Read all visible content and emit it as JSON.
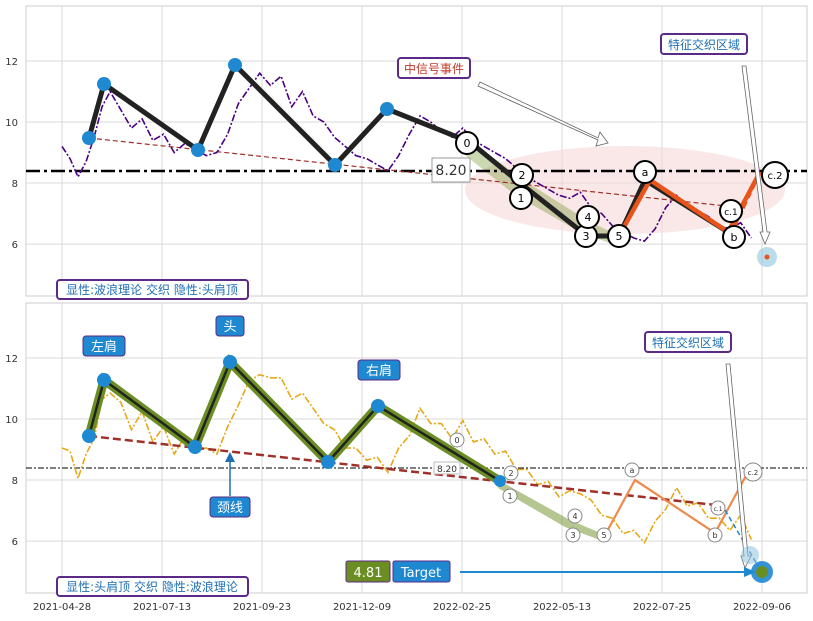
{
  "chart_data": [
    {
      "type": "line",
      "panel": "top",
      "ylim": [
        4.3,
        13.8
      ],
      "y_ticks": [
        6,
        8,
        10,
        12
      ],
      "grid": true,
      "price_series": [
        [
          0,
          9.2
        ],
        [
          3,
          8.8
        ],
        [
          6,
          8.2
        ],
        [
          9,
          8.7
        ],
        [
          12,
          9.5
        ],
        [
          15,
          10.5
        ],
        [
          18,
          11.0
        ],
        [
          22,
          10.4
        ],
        [
          26,
          9.8
        ],
        [
          30,
          10.1
        ],
        [
          34,
          9.4
        ],
        [
          38,
          9.6
        ],
        [
          42,
          9.0
        ],
        [
          46,
          9.3
        ],
        [
          50,
          9.1
        ],
        [
          54,
          8.9
        ],
        [
          58,
          9.0
        ],
        [
          62,
          9.6
        ],
        [
          66,
          10.6
        ],
        [
          70,
          11.1
        ],
        [
          74,
          11.6
        ],
        [
          78,
          11.2
        ],
        [
          82,
          11.5
        ],
        [
          86,
          10.5
        ],
        [
          90,
          11.0
        ],
        [
          94,
          10.2
        ],
        [
          98,
          10.0
        ],
        [
          102,
          9.5
        ],
        [
          106,
          9.2
        ],
        [
          110,
          8.9
        ],
        [
          114,
          8.8
        ],
        [
          118,
          8.6
        ],
        [
          122,
          8.4
        ],
        [
          126,
          8.9
        ],
        [
          130,
          9.6
        ],
        [
          134,
          10.2
        ],
        [
          138,
          10.0
        ],
        [
          142,
          9.7
        ],
        [
          146,
          9.5
        ],
        [
          150,
          9.8
        ],
        [
          154,
          9.4
        ],
        [
          158,
          9.2
        ],
        [
          162,
          9.0
        ],
        [
          166,
          8.8
        ],
        [
          170,
          8.5
        ],
        [
          174,
          8.2
        ],
        [
          178,
          8.0
        ],
        [
          182,
          7.8
        ],
        [
          186,
          7.6
        ],
        [
          190,
          7.5
        ],
        [
          194,
          7.7
        ],
        [
          198,
          7.2
        ],
        [
          202,
          7.0
        ],
        [
          206,
          6.6
        ],
        [
          210,
          6.4
        ],
        [
          214,
          6.2
        ],
        [
          218,
          6.1
        ],
        [
          222,
          6.5
        ],
        [
          226,
          7.2
        ],
        [
          230,
          7.6
        ],
        [
          234,
          7.3
        ],
        [
          238,
          7.1
        ],
        [
          242,
          6.9
        ],
        [
          246,
          6.6
        ],
        [
          250,
          6.5
        ],
        [
          254,
          6.7
        ],
        [
          258,
          6.2
        ]
      ],
      "wave_points": [
        [
          10,
          9.3
        ],
        [
          13,
          11.1
        ],
        [
          42,
          8.9
        ],
        [
          56,
          11.7
        ],
        [
          85,
          8.4
        ],
        [
          100,
          10.3
        ],
        [
          126,
          8.9
        ]
      ],
      "neckline": [
        [
          10,
          9.3
        ],
        [
          255,
          7.0
        ]
      ],
      "reference_level": 8.2,
      "reference_label": "8.20",
      "wave_labels": [
        {
          "t": 126,
          "v": 9.1,
          "label": "0"
        },
        {
          "t": 140,
          "v": 8.0,
          "label": "2"
        },
        {
          "t": 137,
          "v": 7.3,
          "label": "1"
        },
        {
          "t": 163,
          "v": 6.0,
          "label": "3"
        },
        {
          "t": 164,
          "v": 6.7,
          "label": "4"
        },
        {
          "t": 174,
          "v": 6.0,
          "label": "5"
        },
        {
          "t": 183,
          "v": 8.2,
          "label": "a"
        },
        {
          "t": 220,
          "v": 6.0,
          "label": "b"
        },
        {
          "t": 220,
          "v": 6.9,
          "label": "c.1"
        },
        {
          "t": 237,
          "v": 8.0,
          "label": "c.2"
        }
      ],
      "annotations": [
        {
          "text": "中信号事件",
          "color": "#c0392b"
        },
        {
          "text": "特征交织区域",
          "color": "#1f6fb2"
        }
      ],
      "legend_text": "显性:波浪理论 交织 隐性:头肩顶"
    },
    {
      "type": "line",
      "panel": "bottom",
      "ylim": [
        4.3,
        13.8
      ],
      "y_ticks": [
        6,
        8,
        10,
        12
      ],
      "grid": true,
      "wave_points": [
        [
          10,
          9.3
        ],
        [
          13,
          11.1
        ],
        [
          42,
          8.9
        ],
        [
          56,
          11.7
        ],
        [
          85,
          8.4
        ],
        [
          100,
          10.3
        ],
        [
          126,
          8.9
        ]
      ],
      "neckline": [
        [
          10,
          9.3
        ],
        [
          255,
          7.0
        ]
      ],
      "reference_level": 8.2,
      "reference_label": "8.20",
      "shoulder_labels": {
        "left": "左肩",
        "head": "头",
        "right": "右肩",
        "neck": "颈线"
      },
      "target": {
        "value": 4.81,
        "value_label": "4.81",
        "label": "Target"
      },
      "annotations": [
        {
          "text": "特征交织区域",
          "color": "#1f6fb2"
        }
      ],
      "legend_text": "显性:头肩顶 交织 隐性:波浪理论",
      "x_tick_labels": [
        "2021-04-28",
        "2021-07-13",
        "2021-09-23",
        "2021-12-09",
        "2022-02-25",
        "2022-05-13",
        "2022-07-25",
        "2022-09-06"
      ]
    }
  ],
  "colors": {
    "price_top": "#4b0082",
    "price_bottom": "#e6a817",
    "wave_line": "#222222",
    "wave_node": "#1e88d0",
    "neckline": "#a0302a",
    "green_band": "#6b8e23",
    "orange_wave": "#e8541a",
    "ellipse": "#f6d6d6",
    "label_box": "#1e88d0",
    "legend_border": "#5b2a86"
  }
}
